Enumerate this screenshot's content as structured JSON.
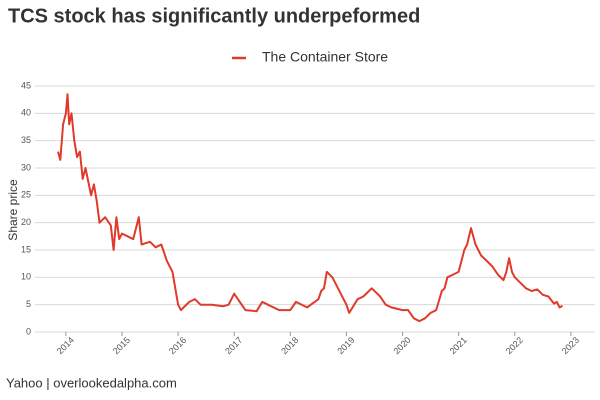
{
  "chart_data": {
    "type": "line",
    "title": "TCS stock has significantly underpeformed",
    "ylabel": "Share price",
    "source": "Yahoo | overlookedalpha.com",
    "x": [
      2013.86,
      2013.9,
      2013.95,
      2014.0,
      2014.03,
      2014.06,
      2014.1,
      2014.15,
      2014.2,
      2014.25,
      2014.3,
      2014.35,
      2014.45,
      2014.5,
      2014.55,
      2014.6,
      2014.7,
      2014.8,
      2014.85,
      2014.9,
      2014.95,
      2015.0,
      2015.1,
      2015.2,
      2015.3,
      2015.35,
      2015.5,
      2015.6,
      2015.7,
      2015.8,
      2015.9,
      2016.0,
      2016.05,
      2016.2,
      2016.3,
      2016.4,
      2016.6,
      2016.8,
      2016.9,
      2017.0,
      2017.1,
      2017.2,
      2017.4,
      2017.5,
      2017.6,
      2017.8,
      2018.0,
      2018.1,
      2018.3,
      2018.5,
      2018.55,
      2018.6,
      2018.65,
      2018.75,
      2018.8,
      2018.85,
      2019.0,
      2019.05,
      2019.2,
      2019.3,
      2019.45,
      2019.55,
      2019.6,
      2019.7,
      2019.8,
      2020.0,
      2020.1,
      2020.2,
      2020.3,
      2020.4,
      2020.5,
      2020.6,
      2020.7,
      2020.75,
      2020.8,
      2020.9,
      2021.0,
      2021.1,
      2021.15,
      2021.22,
      2021.3,
      2021.4,
      2021.5,
      2021.6,
      2021.7,
      2021.8,
      2021.85,
      2021.9,
      2021.95,
      2022.0,
      2022.1,
      2022.2,
      2022.3,
      2022.4,
      2022.5,
      2022.6,
      2022.7,
      2022.75,
      2022.8,
      2022.85
    ],
    "series": [
      {
        "name": "The Container Store",
        "color": "#e03a2b",
        "values": [
          33,
          31.5,
          38,
          40,
          43.5,
          38,
          40,
          35,
          32,
          33,
          28,
          30,
          25,
          27,
          24,
          20,
          21,
          19.5,
          15,
          21,
          17,
          18,
          17.5,
          17,
          21,
          16,
          16.5,
          15.5,
          16,
          13,
          11,
          5,
          4,
          5.5,
          6,
          5,
          5,
          4.7,
          5,
          7,
          5.5,
          4,
          3.8,
          5.5,
          5,
          4,
          4,
          5.5,
          4.5,
          6,
          7.5,
          8,
          11,
          10,
          9,
          8,
          5,
          3.5,
          6,
          6.5,
          8,
          7,
          6.5,
          5,
          4.5,
          4,
          4,
          2.5,
          2,
          2.5,
          3.5,
          4,
          7.5,
          8,
          10,
          10.5,
          11,
          15,
          16,
          19,
          16,
          14,
          13,
          12,
          10.5,
          9.5,
          11,
          13.5,
          11,
          10,
          9,
          8,
          7.5,
          7.8,
          6.8,
          6.5,
          5.2,
          5.5,
          4.5,
          4.8
        ]
      }
    ],
    "xlim": [
      2013.45,
      2023.43
    ],
    "xticks": [
      2014,
      2015,
      2016,
      2017,
      2018,
      2019,
      2020,
      2021,
      2022,
      2023
    ],
    "ylim": [
      0,
      45
    ],
    "yticks": [
      0,
      5,
      10,
      15,
      20,
      25,
      30,
      35,
      40,
      45
    ],
    "grid": true,
    "legend": "top"
  }
}
